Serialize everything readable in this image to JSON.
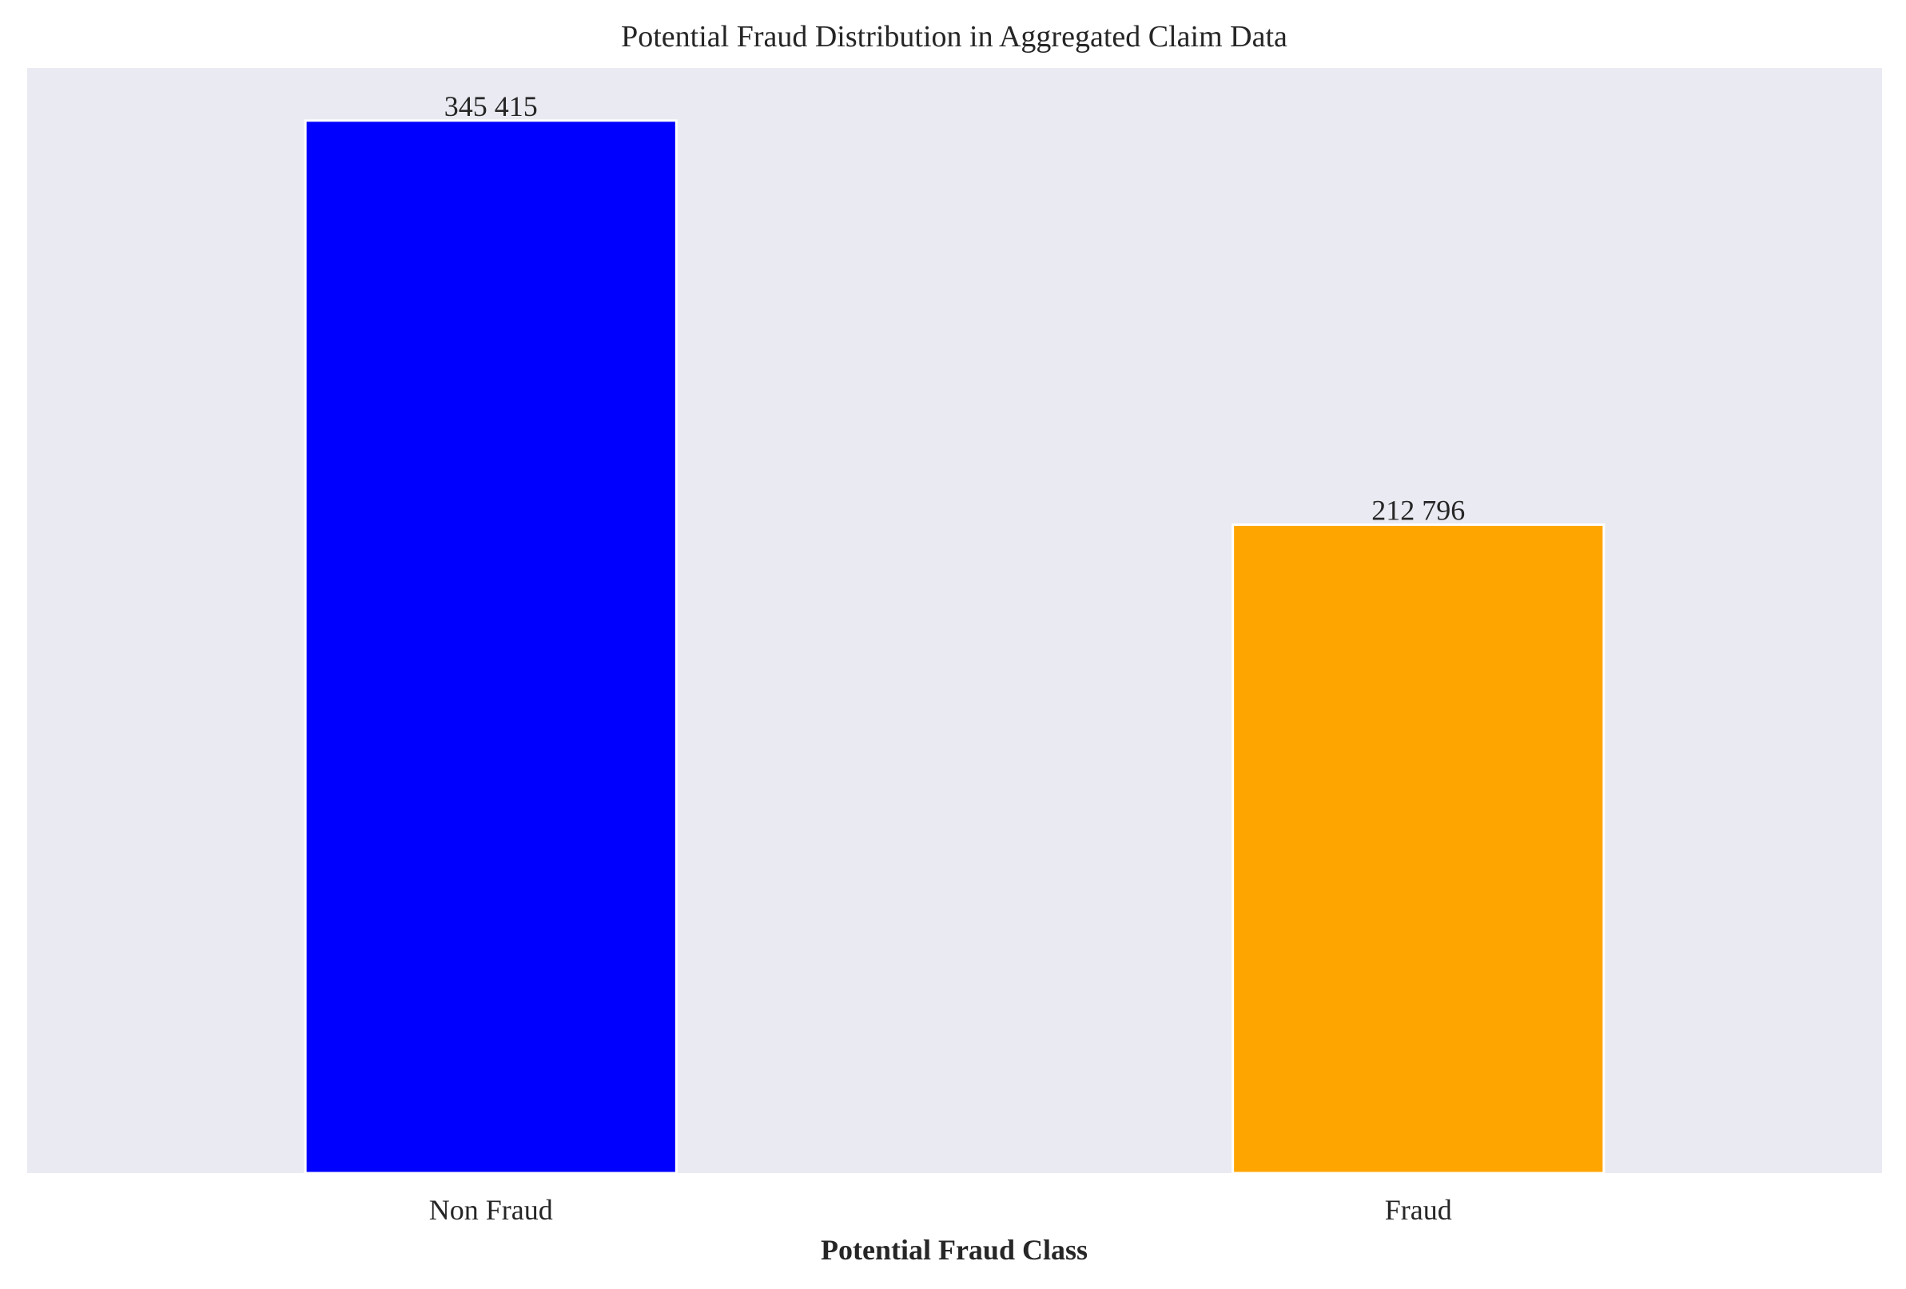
{
  "chart_data": {
    "type": "bar",
    "title": "Potential Fraud Distribution in Aggregated Claim Data",
    "xlabel": "Potential Fraud Class",
    "ylabel": "",
    "categories": [
      "Non Fraud",
      "Fraud"
    ],
    "values": [
      345415,
      212796
    ],
    "value_labels": [
      "345 415",
      "212 796"
    ],
    "bar_colors": [
      "#0000ff",
      "#ffa500"
    ],
    "ylim": [
      0,
      362686
    ],
    "grid": false,
    "legend": "none",
    "y_ticks_visible": false
  },
  "style": {
    "plot_background": "#eaeaf2",
    "bar_edge_color": "#ffffff",
    "text_color": "#262626"
  }
}
